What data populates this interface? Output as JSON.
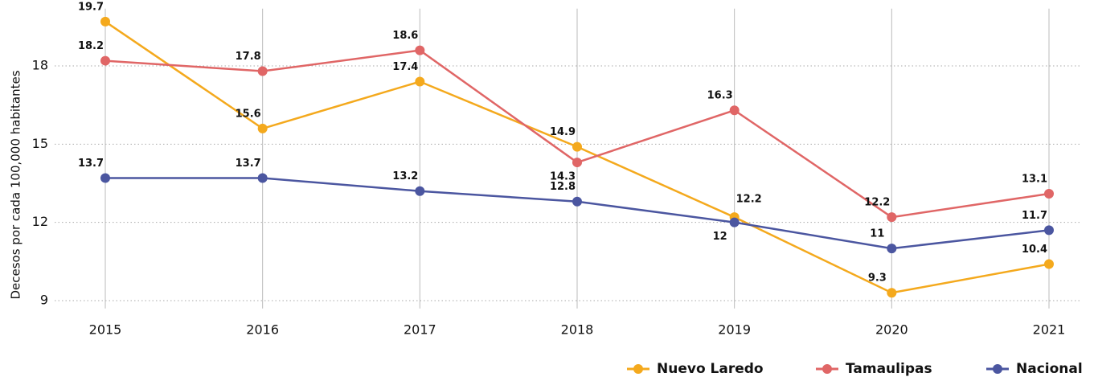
{
  "chart_data": {
    "type": "line",
    "y_label": "Decesos por cada 100,000 habitantes",
    "categories": [
      "2015",
      "2016",
      "2017",
      "2018",
      "2019",
      "2020",
      "2021"
    ],
    "series": [
      {
        "name": "Nuevo Laredo",
        "color": "#f4a91d",
        "values": [
          19.7,
          15.6,
          17.4,
          14.9,
          12.2,
          9.3,
          10.4
        ]
      },
      {
        "name": "Tamaulipas",
        "color": "#e06666",
        "values": [
          18.2,
          17.8,
          18.6,
          14.3,
          16.3,
          12.2,
          13.1
        ]
      },
      {
        "name": "Nacional",
        "color": "#4b56a0",
        "values": [
          13.7,
          13.7,
          13.2,
          12.8,
          12,
          11,
          11.7
        ]
      }
    ],
    "ylim": [
      8.7,
      20.2
    ],
    "yticks": [
      9,
      12,
      15,
      18
    ],
    "grid": true,
    "legend": "lower right"
  }
}
